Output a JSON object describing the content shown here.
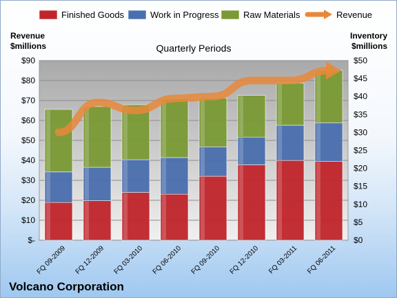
{
  "chart_data": {
    "type": "bar",
    "stacked": true,
    "title": "Quarterly Periods",
    "company": "Volcano Corporation",
    "categories": [
      "FQ 09-2009",
      "FQ 12-2009",
      "FQ 03-2010",
      "FQ 06-2010",
      "FQ 09-2010",
      "FQ 12-2010",
      "FQ 03-2011",
      "FQ 06-2011"
    ],
    "series": [
      {
        "name": "Finished Goods",
        "axis": "right",
        "color": "#c0252b",
        "values": [
          10.5,
          11.0,
          13.3,
          12.8,
          17.8,
          21.0,
          22.2,
          21.9
        ]
      },
      {
        "name": "Work in Progress",
        "axis": "right",
        "color": "#4a6fae",
        "values": [
          8.5,
          9.3,
          9.1,
          10.2,
          8.2,
          7.7,
          9.8,
          10.8
        ]
      },
      {
        "name": "Raw Materials",
        "axis": "right",
        "color": "#7a9a34",
        "values": [
          17.4,
          16.9,
          15.3,
          16.4,
          13.6,
          11.6,
          11.7,
          14.6
        ]
      }
    ],
    "line_series": {
      "name": "Revenue",
      "axis": "left",
      "color": "#e8883a",
      "values": [
        54,
        69,
        65,
        71,
        72,
        80,
        80,
        85
      ]
    },
    "left_axis": {
      "label_line1": "Revenue",
      "label_line2": "$millions",
      "ylim": [
        0,
        90
      ],
      "ticks": [
        "$-",
        "$10",
        "$20",
        "$30",
        "$40",
        "$50",
        "$60",
        "$70",
        "$80",
        "$90"
      ]
    },
    "right_axis": {
      "label_line1": "Inventory",
      "label_line2": "$millions",
      "ylim": [
        0,
        50
      ],
      "ticks": [
        "$0",
        "$5",
        "$10",
        "$15",
        "$20",
        "$25",
        "$30",
        "$35",
        "$40",
        "$45",
        "$50"
      ]
    },
    "legend_position": "top",
    "grid": true
  }
}
